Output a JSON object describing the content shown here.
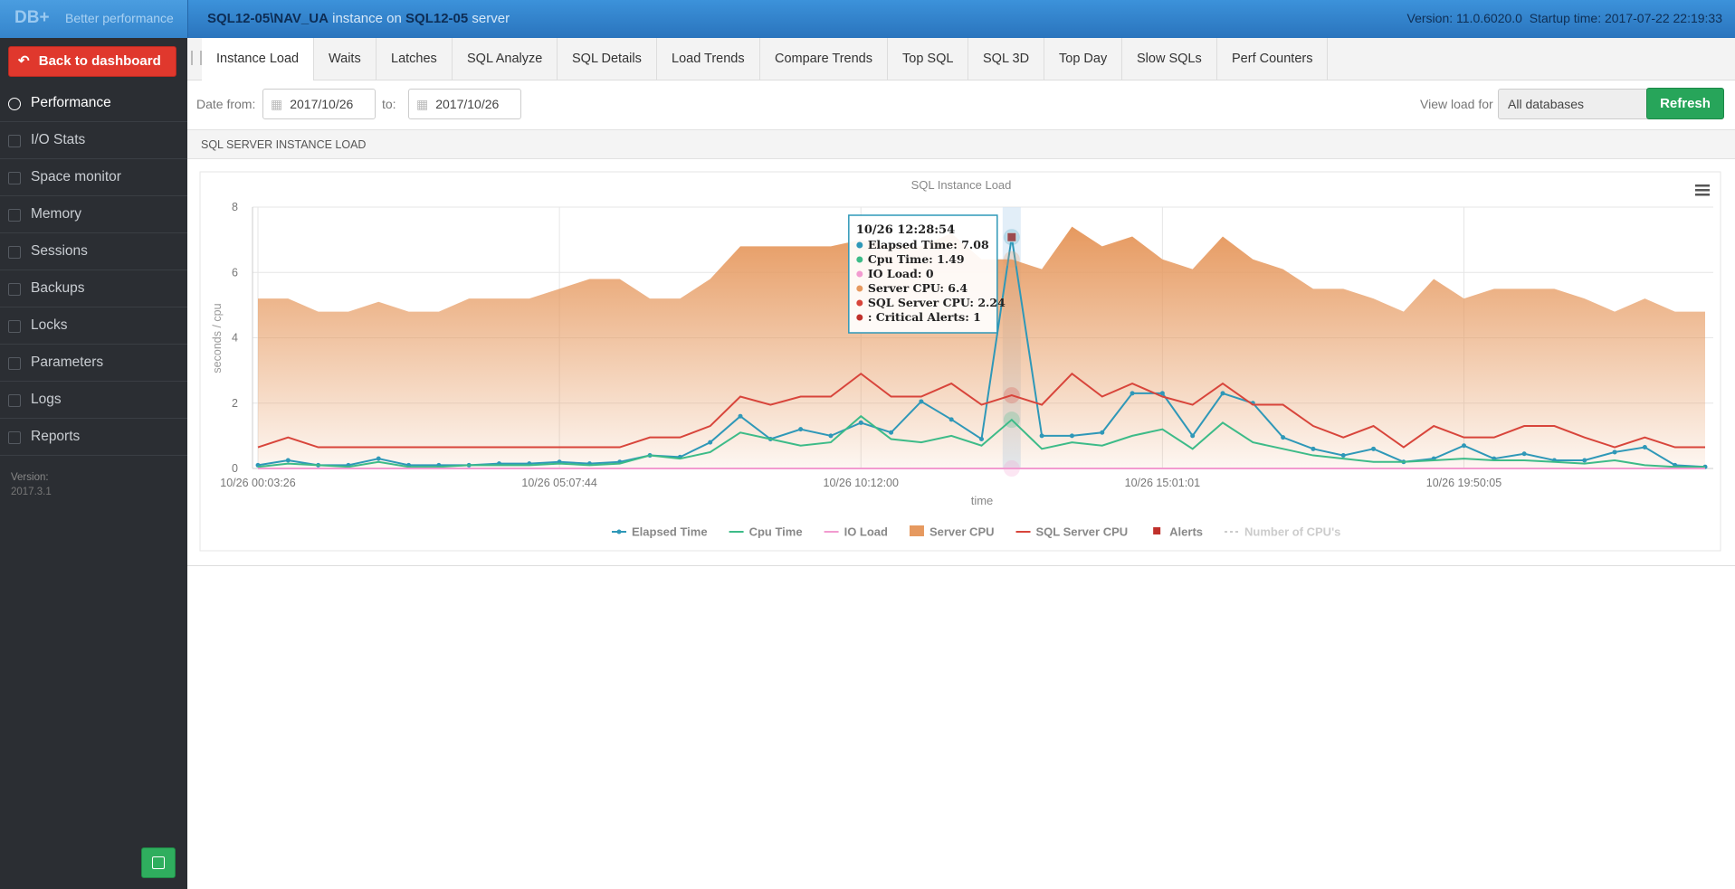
{
  "header": {
    "logo": "DB+",
    "tagline": "Better performance",
    "instance": "SQL12-05\\NAV_UA",
    "instance_text": "instance on",
    "server": "SQL12-05",
    "server_text": "server",
    "version": "Version: 11.0.6020.0",
    "startup": "Startup time: 2017-07-22 22:19:33"
  },
  "sidebar": {
    "back": "Back to dashboard",
    "menu": [
      "Performance",
      "I/O Stats",
      "Space monitor",
      "Memory",
      "Sessions",
      "Backups",
      "Locks",
      "Parameters",
      "Logs",
      "Reports"
    ],
    "active": 0,
    "version_label": "Version:",
    "version": "2017.3.1"
  },
  "tabs": {
    "items": [
      "Instance Load",
      "Waits",
      "Latches",
      "SQL Analyze",
      "SQL Details",
      "Load Trends",
      "Compare Trends",
      "Top SQL",
      "SQL 3D",
      "Top Day",
      "Slow SQLs",
      "Perf Counters"
    ],
    "active": 0
  },
  "filters": {
    "date_from_label": "Date from:",
    "date_from": "2017/10/26",
    "to_label": "to:",
    "date_to": "2017/10/26",
    "view_label": "View load for",
    "view_value": "All databases",
    "refresh": "Refresh"
  },
  "section_title": "SQL SERVER INSTANCE LOAD",
  "chart_data": {
    "type": "line",
    "title": "SQL Instance Load",
    "xlabel": "time",
    "ylabel": "seconds / cpu",
    "categories": [
      "10/26 00:03:26",
      null,
      null,
      null,
      null,
      null,
      null,
      null,
      null,
      null,
      "10/26 05:07:44",
      null,
      null,
      null,
      null,
      null,
      null,
      null,
      null,
      null,
      "10/26 10:12:00",
      null,
      null,
      null,
      null,
      null,
      null,
      null,
      null,
      null,
      "10/26 15:01:01",
      null,
      null,
      null,
      null,
      null,
      null,
      null,
      null,
      null,
      "10/26 19:50:05",
      null,
      null,
      null,
      null,
      null,
      null,
      null,
      null
    ],
    "ylim": [
      0,
      8
    ],
    "yticks": [
      0,
      2,
      4,
      6,
      8
    ],
    "grid": true,
    "series": [
      {
        "name": "Elapsed Time",
        "type": "line",
        "markers": true,
        "color": "#2f98b8",
        "values": [
          0.1,
          0.25,
          0.1,
          0.1,
          0.3,
          0.1,
          0.1,
          0.1,
          0.15,
          0.15,
          0.2,
          0.15,
          0.2,
          0.4,
          0.35,
          0.8,
          1.6,
          0.9,
          1.2,
          1.0,
          1.4,
          1.1,
          2.05,
          1.5,
          0.9,
          7.08,
          1.0,
          1.0,
          1.1,
          2.3,
          2.3,
          1.0,
          2.3,
          2.0,
          0.95,
          0.6,
          0.4,
          0.6,
          0.2,
          0.3,
          0.7,
          0.3,
          0.45,
          0.25,
          0.25,
          0.5,
          0.65,
          0.1,
          0.05
        ]
      },
      {
        "name": "Cpu Time",
        "type": "line",
        "color": "#3dbb88",
        "values": [
          0.05,
          0.15,
          0.1,
          0.05,
          0.2,
          0.05,
          0.05,
          0.1,
          0.1,
          0.1,
          0.15,
          0.1,
          0.15,
          0.4,
          0.3,
          0.5,
          1.1,
          0.9,
          0.7,
          0.8,
          1.6,
          0.9,
          0.8,
          1.0,
          0.7,
          1.49,
          0.6,
          0.8,
          0.7,
          1.0,
          1.2,
          0.6,
          1.4,
          0.8,
          0.6,
          0.4,
          0.3,
          0.2,
          0.2,
          0.25,
          0.3,
          0.25,
          0.25,
          0.2,
          0.15,
          0.25,
          0.1,
          0.05,
          0.05
        ]
      },
      {
        "name": "IO Load",
        "type": "line",
        "color": "#f29bd0",
        "values": [
          0,
          0,
          0,
          0,
          0,
          0,
          0,
          0,
          0,
          0,
          0,
          0,
          0,
          0,
          0,
          0,
          0,
          0,
          0,
          0,
          0,
          0,
          0,
          0,
          0,
          0,
          0,
          0,
          0,
          0,
          0,
          0,
          0,
          0,
          0,
          0,
          0,
          0,
          0,
          0,
          0,
          0,
          0,
          0,
          0,
          0,
          0,
          0,
          0
        ]
      },
      {
        "name": "Server CPU",
        "type": "area",
        "color": "#e6995f",
        "values": [
          5.2,
          5.2,
          4.8,
          4.8,
          5.1,
          4.8,
          4.8,
          5.2,
          5.2,
          5.2,
          5.5,
          5.8,
          5.8,
          5.2,
          5.2,
          5.8,
          6.8,
          6.8,
          6.8,
          6.8,
          7.0,
          6.8,
          6.8,
          7.2,
          6.4,
          6.4,
          6.1,
          7.4,
          6.8,
          7.1,
          6.4,
          6.1,
          7.1,
          6.4,
          6.1,
          5.5,
          5.5,
          5.2,
          4.8,
          5.8,
          5.2,
          5.5,
          5.5,
          5.5,
          5.2,
          4.8,
          5.2,
          4.8,
          4.8
        ]
      },
      {
        "name": "SQL Server CPU",
        "type": "line",
        "color": "#d8453b",
        "values": [
          0.65,
          0.95,
          0.65,
          0.65,
          0.65,
          0.65,
          0.65,
          0.65,
          0.65,
          0.65,
          0.65,
          0.65,
          0.65,
          0.95,
          0.95,
          1.3,
          2.2,
          1.95,
          2.2,
          2.2,
          2.9,
          2.2,
          2.2,
          2.6,
          1.95,
          2.24,
          1.95,
          2.9,
          2.2,
          2.6,
          2.2,
          1.95,
          2.6,
          1.95,
          1.95,
          1.3,
          0.95,
          1.3,
          0.65,
          1.3,
          0.95,
          0.95,
          1.3,
          1.3,
          0.95,
          0.65,
          0.95,
          0.65,
          0.65
        ]
      },
      {
        "name": "Alerts",
        "type": "alert",
        "on": "Elapsed Time",
        "color": "#c0302b",
        "values": [
          null,
          null,
          null,
          null,
          null,
          null,
          null,
          null,
          null,
          null,
          null,
          null,
          null,
          null,
          null,
          null,
          null,
          null,
          null,
          null,
          null,
          null,
          null,
          null,
          null,
          1,
          null,
          null,
          null,
          null,
          null,
          null,
          null,
          null,
          null,
          null,
          null,
          null,
          null,
          null,
          null,
          null,
          null,
          null,
          null,
          null,
          null,
          null,
          null
        ]
      },
      {
        "name": "Number of CPU's",
        "type": "hidden",
        "color": "#cccccc"
      }
    ],
    "tooltip": {
      "index": 25,
      "title": "10/26 12:28:54",
      "items": [
        {
          "text": "Elapsed Time: 7.08",
          "color": "#2f98b8"
        },
        {
          "text": "Cpu Time: 1.49",
          "color": "#3dbb88"
        },
        {
          "text": "IO Load: 0",
          "color": "#f29bd0"
        },
        {
          "text": "Server CPU: 6.4",
          "color": "#e6995f"
        },
        {
          "text": "SQL Server CPU: 2.24",
          "color": "#d8453b"
        },
        {
          "text": ": Critical Alerts: 1",
          "color": "#c0302b"
        }
      ]
    }
  }
}
